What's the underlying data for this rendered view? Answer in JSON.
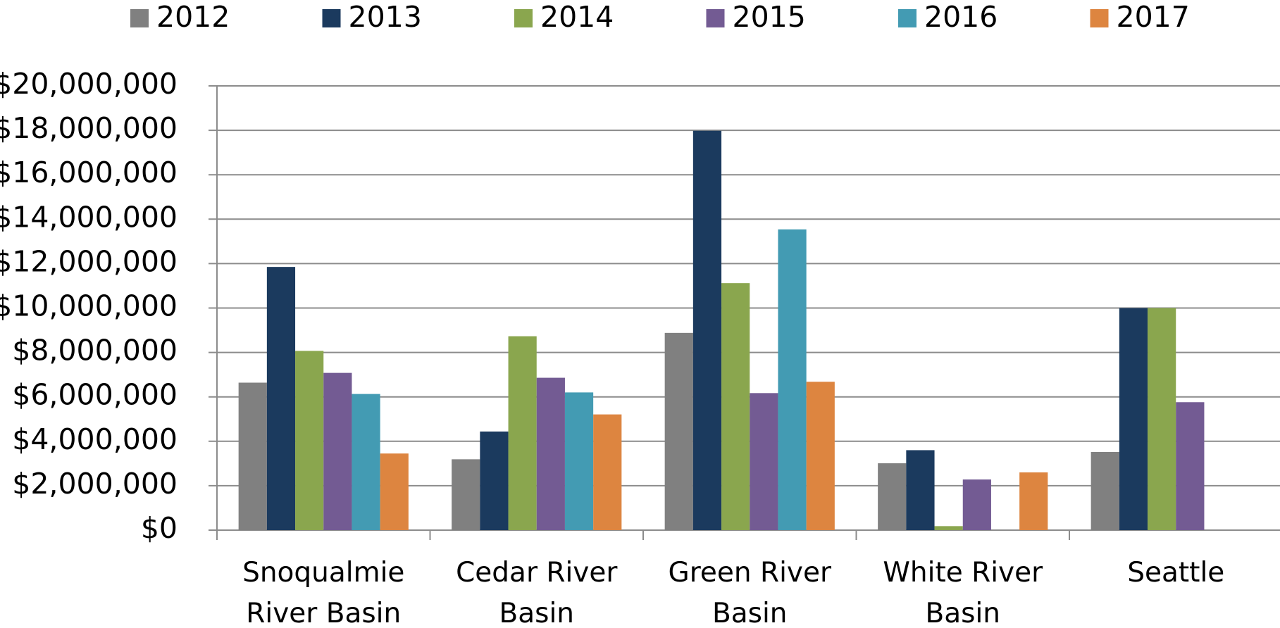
{
  "chart_data": {
    "type": "bar",
    "categories": [
      "Snoqualmie River Basin",
      "Cedar River Basin",
      "Green River Basin",
      "White River Basin",
      "Seattle"
    ],
    "series": [
      {
        "name": "2012",
        "color": "#808080",
        "values": [
          6640000,
          3190000,
          8880000,
          3010000,
          3520000
        ]
      },
      {
        "name": "2013",
        "color": "#1b3a5e",
        "values": [
          11850000,
          4440000,
          17980000,
          3600000,
          10000000
        ]
      },
      {
        "name": "2014",
        "color": "#8aa64e",
        "values": [
          8070000,
          8730000,
          11120000,
          180000,
          10000000
        ]
      },
      {
        "name": "2015",
        "color": "#735b93",
        "values": [
          7080000,
          6860000,
          6170000,
          2280000,
          5760000
        ]
      },
      {
        "name": "2016",
        "color": "#439bb3",
        "values": [
          6130000,
          6200000,
          13540000,
          null,
          null
        ]
      },
      {
        "name": "2017",
        "color": "#dd8540",
        "values": [
          3450000,
          5210000,
          6680000,
          2600000,
          null
        ]
      }
    ],
    "ylim": [
      0,
      20000000
    ],
    "yticks": [
      {
        "value": 0,
        "label": "$0"
      },
      {
        "value": 2000000,
        "label": "$2,000,000"
      },
      {
        "value": 4000000,
        "label": "$4,000,000"
      },
      {
        "value": 6000000,
        "label": "$6,000,000"
      },
      {
        "value": 8000000,
        "label": "$8,000,000"
      },
      {
        "value": 10000000,
        "label": "$10,000,000"
      },
      {
        "value": 12000000,
        "label": "$12,000,000"
      },
      {
        "value": 14000000,
        "label": "$14,000,000"
      },
      {
        "value": 16000000,
        "label": "$16,000,000"
      },
      {
        "value": 18000000,
        "label": "$18,000,000"
      },
      {
        "value": 20000000,
        "label": "$20,000,000"
      }
    ],
    "grid": true,
    "legend": "top"
  }
}
